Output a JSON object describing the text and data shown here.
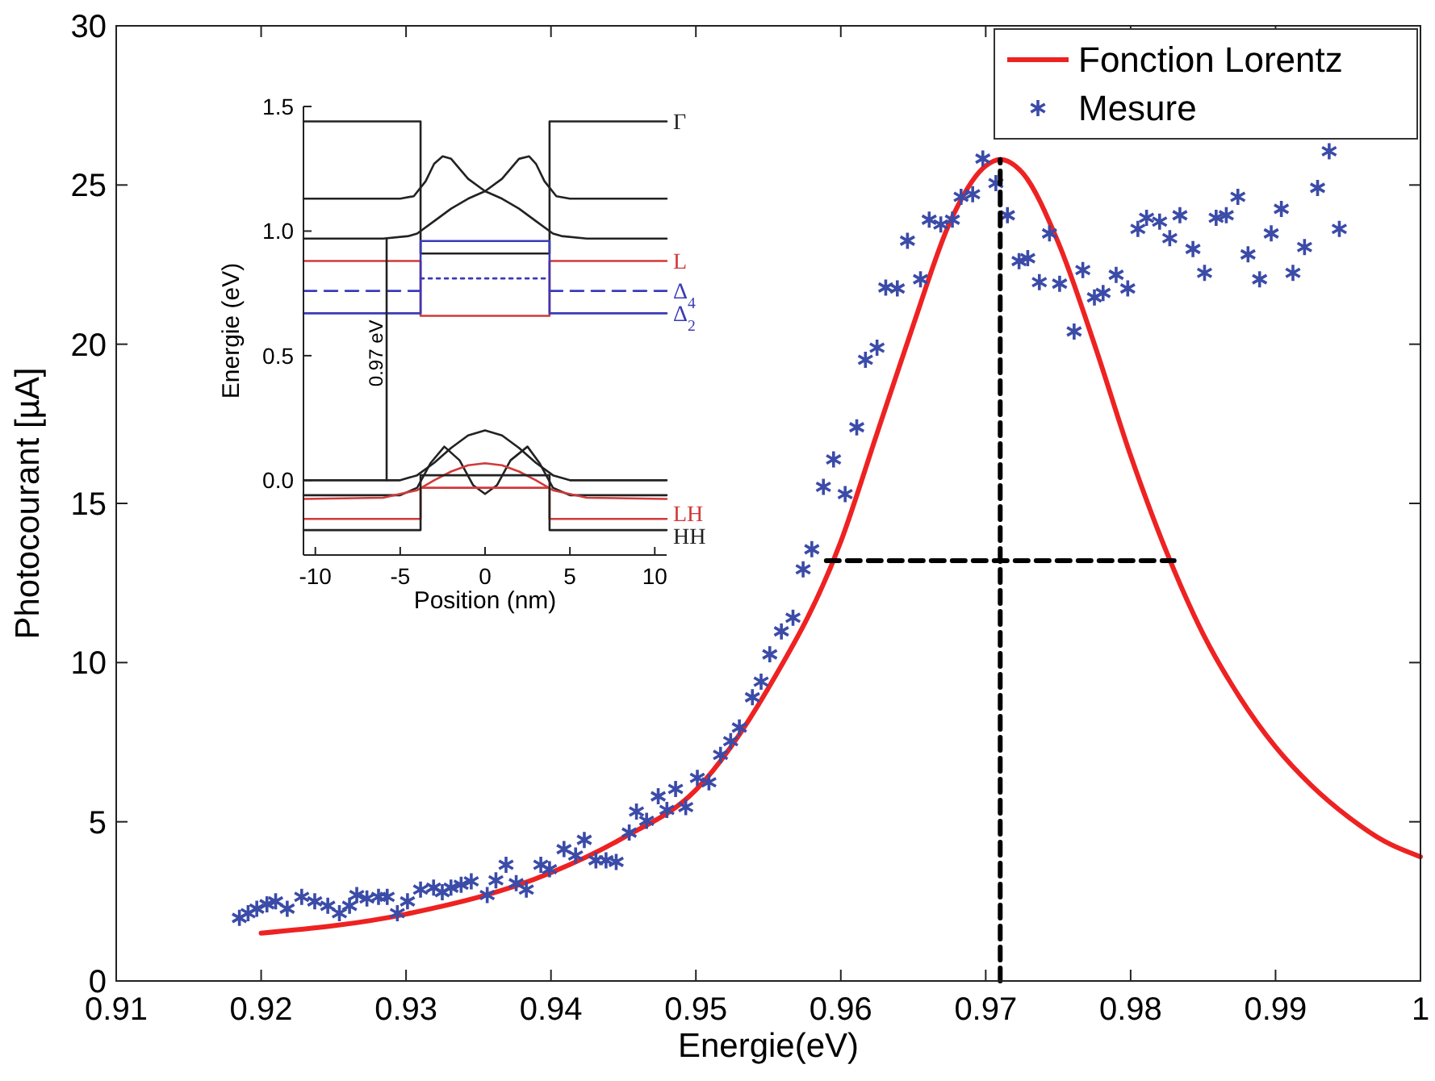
{
  "chart_data": [
    {
      "type": "line",
      "xlabel": "Energie(eV)",
      "ylabel": "Photocourant [µA]",
      "xlim": [
        0.91,
        1.0
      ],
      "ylim": [
        0,
        30
      ],
      "xticks": [
        0.91,
        0.92,
        0.93,
        0.94,
        0.95,
        0.96,
        0.97,
        0.98,
        0.99,
        1
      ],
      "yticks": [
        0,
        5,
        10,
        15,
        20,
        25,
        30
      ],
      "legend": "top right",
      "series": [
        {
          "name": "Fonction Lorentz",
          "color": "#ee2222",
          "line_style": "solid",
          "marker": "none",
          "x": [
            0.92,
            0.93,
            0.94,
            0.945,
            0.95,
            0.955,
            0.96,
            0.9625,
            0.965,
            0.9675,
            0.97,
            0.971,
            0.9725,
            0.975,
            0.9775,
            0.98,
            0.9825,
            0.985,
            0.9875,
            0.99,
            0.9925,
            0.995,
            0.9975,
            1.0
          ],
          "values": [
            1.5,
            2.1,
            3.4,
            4.5,
            6.0,
            9.2,
            13.8,
            17.2,
            20.6,
            23.8,
            25.6,
            25.8,
            25.4,
            23.2,
            20.0,
            16.5,
            13.45,
            10.9,
            8.93,
            7.35,
            6.13,
            5.16,
            4.39,
            3.9
          ]
        },
        {
          "name": "Mesure",
          "type": "scatter",
          "color": "#3b4ba8",
          "marker": "cross",
          "x": [
            0.9185,
            0.9191,
            0.9197,
            0.9204,
            0.921,
            0.9218,
            0.9228,
            0.9237,
            0.9246,
            0.9254,
            0.9261,
            0.9266,
            0.9273,
            0.9281,
            0.9287,
            0.9294,
            0.9301,
            0.931,
            0.9319,
            0.9325,
            0.9331,
            0.9338,
            0.9345,
            0.9356,
            0.9362,
            0.9369,
            0.9376,
            0.9383,
            0.9393,
            0.9399,
            0.9409,
            0.9417,
            0.9423,
            0.9431,
            0.9438,
            0.9445,
            0.9454,
            0.9459,
            0.9466,
            0.9474,
            0.948,
            0.9486,
            0.9493,
            0.9501,
            0.9509,
            0.9517,
            0.9524,
            0.953,
            0.9539,
            0.9545,
            0.9551,
            0.9559,
            0.9567,
            0.9574,
            0.958,
            0.9588,
            0.9595,
            0.9603,
            0.9611,
            0.9617,
            0.9625,
            0.9631,
            0.9639,
            0.9646,
            0.9655,
            0.9661,
            0.9669,
            0.9677,
            0.9683,
            0.9691,
            0.9698,
            0.9707,
            0.9715,
            0.9723,
            0.9729,
            0.9737,
            0.9744,
            0.9751,
            0.9761,
            0.9767,
            0.9775,
            0.9781,
            0.979,
            0.9798,
            0.9805,
            0.9811,
            0.982,
            0.9827,
            0.9834,
            0.9843,
            0.9851,
            0.9859,
            0.9866,
            0.9874,
            0.9881,
            0.9889,
            0.9897,
            0.9904,
            0.9912,
            0.992,
            0.9929,
            0.9937,
            0.9944
          ],
          "values": [
            1.98,
            2.13,
            2.27,
            2.41,
            2.5,
            2.27,
            2.64,
            2.5,
            2.36,
            2.13,
            2.36,
            2.7,
            2.59,
            2.64,
            2.64,
            2.13,
            2.5,
            2.87,
            2.93,
            2.79,
            2.93,
            3.02,
            3.13,
            2.7,
            3.16,
            3.65,
            3.07,
            2.87,
            3.65,
            3.51,
            4.14,
            3.94,
            4.43,
            3.79,
            3.79,
            3.74,
            4.66,
            5.32,
            5.03,
            5.8,
            5.37,
            6.03,
            5.46,
            6.38,
            6.24,
            7.1,
            7.53,
            7.96,
            8.91,
            9.4,
            10.26,
            10.98,
            11.41,
            12.93,
            13.56,
            15.52,
            16.38,
            15.29,
            17.39,
            19.51,
            19.89,
            21.78,
            21.75,
            23.25,
            22.04,
            23.91,
            23.76,
            23.91,
            24.63,
            24.71,
            25.83,
            25.06,
            24.05,
            22.61,
            22.7,
            21.95,
            23.48,
            21.9,
            20.4,
            22.33,
            21.47,
            21.61,
            22.18,
            21.75,
            23.62,
            23.97,
            23.85,
            23.33,
            24.05,
            22.99,
            22.24,
            23.97,
            24.05,
            24.63,
            22.82,
            22.04,
            23.48,
            24.25,
            22.24,
            23.05,
            24.91,
            26.06,
            23.62
          ]
        },
        {
          "color": "#000000",
          "line_style": "dashed",
          "marker": "none",
          "x": [
            0.971,
            0.971
          ],
          "values": [
            0,
            25.8
          ]
        },
        {
          "color": "#000000",
          "line_style": "dashed",
          "marker": "none",
          "x": [
            0.959,
            0.983
          ],
          "values": [
            13.2,
            13.2
          ]
        }
      ]
    },
    {
      "type": "line",
      "xlabel": "Position (nm)",
      "ylabel": "Energie (eV)",
      "xlim": [
        -10.7,
        10.7
      ],
      "ylim": [
        -0.3,
        1.5
      ],
      "xticks": [
        -10,
        -5,
        0,
        5,
        10
      ],
      "yticks": [
        {
          "value": 0,
          "label": "0.0"
        },
        {
          "value": 0.5,
          "label": "0.5"
        },
        {
          "value": 1,
          "label": "1.0"
        },
        {
          "value": 1.5,
          "label": "1.5"
        }
      ],
      "annotations": [
        "0.97 eV"
      ],
      "series": [
        {
          "name": "Γ",
          "color": "#222222",
          "line_style": "solid",
          "x": [
            -10.7,
            -3.8,
            -3.8,
            3.8,
            3.8,
            10.7
          ],
          "values": [
            1.44,
            1.44,
            0.91,
            0.91,
            1.44,
            1.44
          ]
        },
        {
          "color": "#222222",
          "line_style": "solid",
          "x": [
            -10.7,
            -5,
            -4.2,
            -3.5,
            -3,
            -2.5,
            -2,
            -1,
            0,
            1,
            2,
            2.6,
            3,
            3.5,
            4.2,
            5,
            10.7
          ],
          "values": [
            1.13,
            1.13,
            1.14,
            1.2,
            1.27,
            1.3,
            1.29,
            1.21,
            1.16,
            1.21,
            1.29,
            1.3,
            1.27,
            1.2,
            1.14,
            1.13,
            1.13
          ]
        },
        {
          "color": "#222222",
          "line_style": "solid",
          "x": [
            -10.7,
            -6,
            -4.5,
            -4,
            -3,
            -2,
            -1,
            0,
            1,
            2,
            3,
            4,
            4.5,
            6,
            10.7
          ],
          "values": [
            0.97,
            0.97,
            0.98,
            0.99,
            1.04,
            1.09,
            1.13,
            1.16,
            1.13,
            1.09,
            1.04,
            0.99,
            0.98,
            0.97,
            0.97
          ]
        },
        {
          "name": "L",
          "color": "#d03a3a",
          "line_style": "solid",
          "x": [
            -10.7,
            -3.8,
            -3.8,
            3.8,
            3.8,
            10.7
          ],
          "values": [
            0.88,
            0.88,
            0.66,
            0.66,
            0.88,
            0.88
          ]
        },
        {
          "name": "Δ$_{4}$",
          "color": "#3a3ab8",
          "line_style": "dashed",
          "x": [
            -10.7,
            -3.8,
            0,
            3.8,
            10.7
          ],
          "values": [
            0.76,
            0.76,
            null,
            0.76,
            0.76
          ]
        },
        {
          "color": "#3a3ab8",
          "line_style": "dotted",
          "x": [
            -3.8,
            3.8
          ],
          "values": [
            0.81,
            0.81
          ]
        },
        {
          "name": "Δ$_{2}$",
          "color": "#3a3ab8",
          "line_style": "solid",
          "x": [
            -10.7,
            -3.8,
            -3.8,
            3.8,
            3.8,
            10.7
          ],
          "values": [
            0.67,
            0.67,
            0.96,
            0.96,
            0.67,
            0.67
          ]
        },
        {
          "color": "#222222",
          "line_style": "solid",
          "x": [
            -5.8,
            -5.8
          ],
          "values": [
            0,
            0.97
          ]
        },
        {
          "color": "#222222",
          "line_style": "solid",
          "x": [
            -10.7,
            -5,
            -4,
            -3,
            -2,
            -1,
            0,
            1,
            2,
            3,
            4,
            5,
            10.7
          ],
          "values": [
            0,
            0,
            0.02,
            0.07,
            0.13,
            0.18,
            0.2,
            0.18,
            0.13,
            0.07,
            0.02,
            0,
            0
          ]
        },
        {
          "color": "#222222",
          "line_style": "solid",
          "x": [
            -10.7,
            -5,
            -4,
            -3.2,
            -2.4,
            -1.5,
            -0.7,
            0,
            0.7,
            1.5,
            2.5,
            3.2,
            4,
            5,
            10.7
          ],
          "values": [
            -0.06,
            -0.06,
            -0.03,
            0.07,
            0.135,
            0.08,
            -0.02,
            -0.055,
            -0.02,
            0.08,
            0.135,
            0.07,
            -0.03,
            -0.06,
            -0.06
          ]
        },
        {
          "color": "#d03a3a",
          "line_style": "solid",
          "x": [
            -10.7,
            -6,
            -4,
            -3,
            -2,
            -1,
            0,
            1,
            2,
            3,
            4,
            6,
            10.7
          ],
          "values": [
            -0.075,
            -0.07,
            -0.04,
            0,
            0.035,
            0.06,
            0.068,
            0.06,
            0.035,
            0,
            -0.04,
            -0.07,
            -0.075
          ]
        },
        {
          "name": "LH",
          "color": "#d03a3a",
          "line_style": "solid",
          "x": [
            -10.7,
            -3.8,
            -3.8,
            3.8,
            3.8,
            10.7
          ],
          "values": [
            -0.155,
            -0.155,
            -0.03,
            -0.03,
            -0.155,
            -0.155
          ]
        },
        {
          "name": "HH",
          "color": "#222222",
          "line_style": "solid",
          "x": [
            -10.7,
            -3.8,
            -3.8,
            3.8,
            3.8,
            10.7
          ],
          "values": [
            -0.2,
            -0.2,
            0.02,
            0.02,
            -0.2,
            -0.2
          ]
        }
      ]
    }
  ]
}
